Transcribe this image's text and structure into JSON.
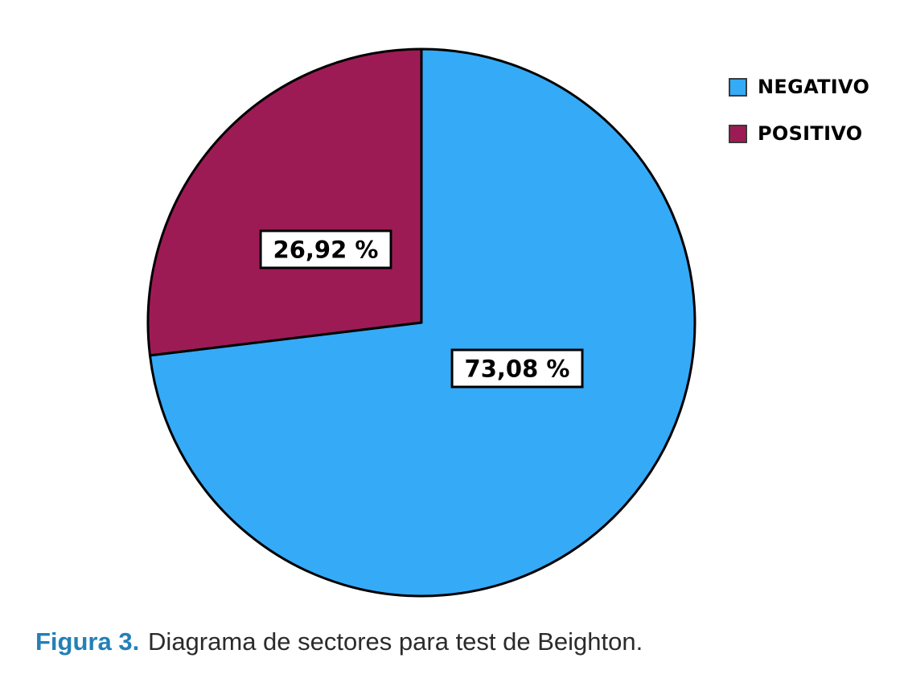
{
  "chart_data": {
    "type": "pie",
    "title": "",
    "categories": [
      "NEGATIVO",
      "POSITIVO"
    ],
    "values": [
      73.08,
      26.92
    ],
    "slices": [
      {
        "label": "NEGATIVO",
        "value": 73.08,
        "display_label": "73,08 %",
        "color": "#35aaf7"
      },
      {
        "label": "POSITIVO",
        "value": 26.92,
        "display_label": "26,92 %",
        "color": "#9d1b55"
      }
    ],
    "start_angle_deg": 0,
    "direction": "clockwise",
    "stroke_color": "#000000",
    "legend_position": "top-right",
    "value_format": "percent-comma-decimal"
  },
  "caption": {
    "label": "Figura 3.",
    "text": "Diagrama de sectores para test de Beighton."
  }
}
